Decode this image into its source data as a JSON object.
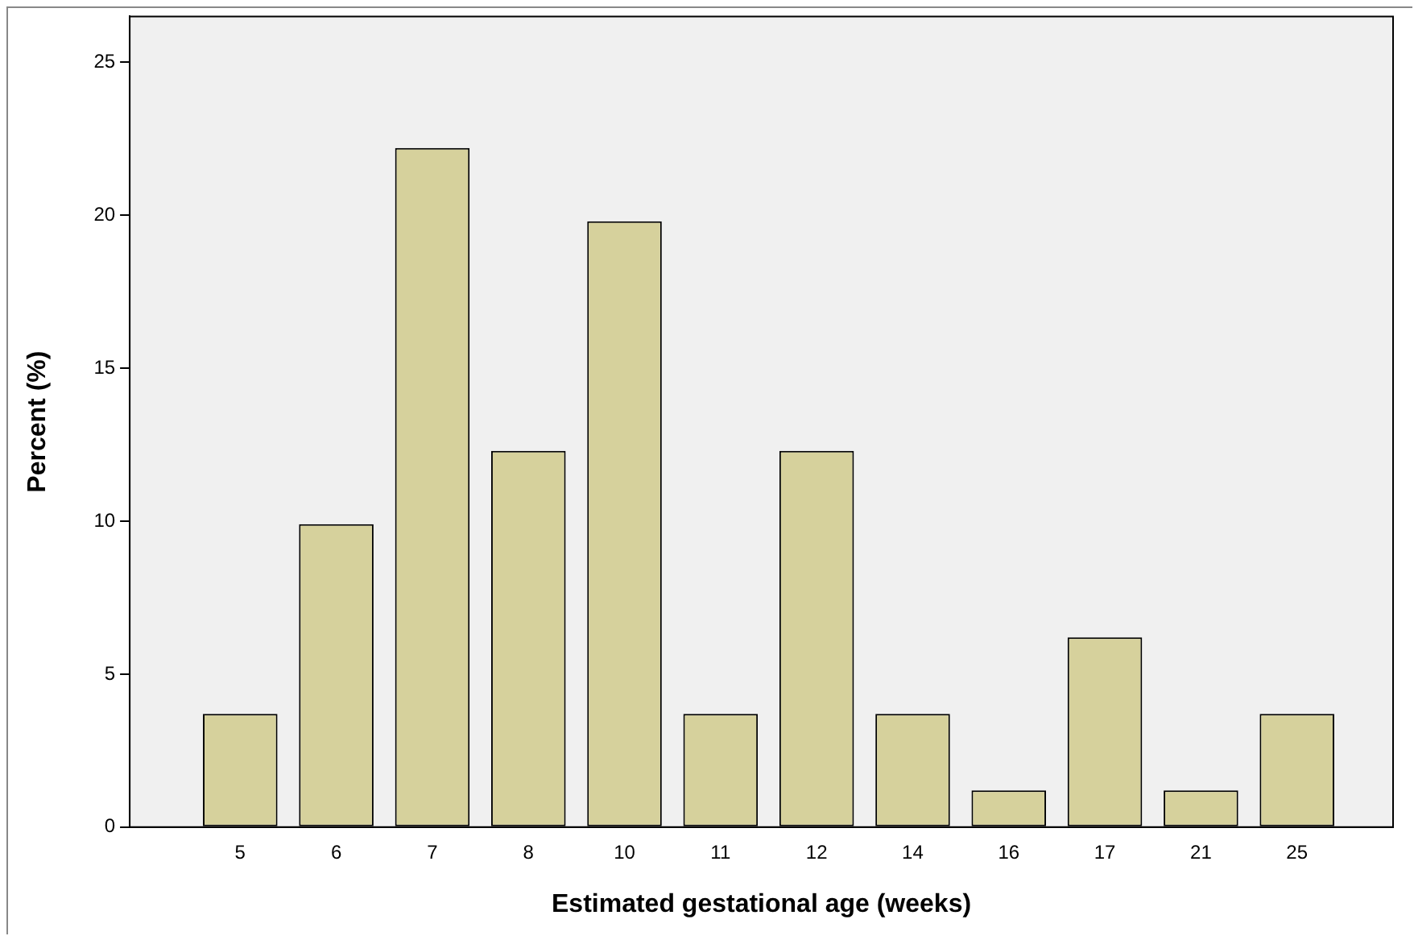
{
  "chart_data": {
    "type": "bar",
    "xlabel": "Estimated gestational age (weeks)",
    "ylabel": "Percent (%)",
    "categories": [
      "5",
      "6",
      "7",
      "8",
      "10",
      "11",
      "12",
      "14",
      "16",
      "17",
      "21",
      "25"
    ],
    "values": [
      3.7,
      9.9,
      22.2,
      12.3,
      19.8,
      3.7,
      12.3,
      3.7,
      1.2,
      6.2,
      1.2,
      3.7
    ],
    "color": "#d6d19c",
    "ylim": [
      0,
      26.5
    ],
    "yticks": [
      0,
      5,
      10,
      15,
      20,
      25
    ],
    "grid": false,
    "legend": false
  }
}
